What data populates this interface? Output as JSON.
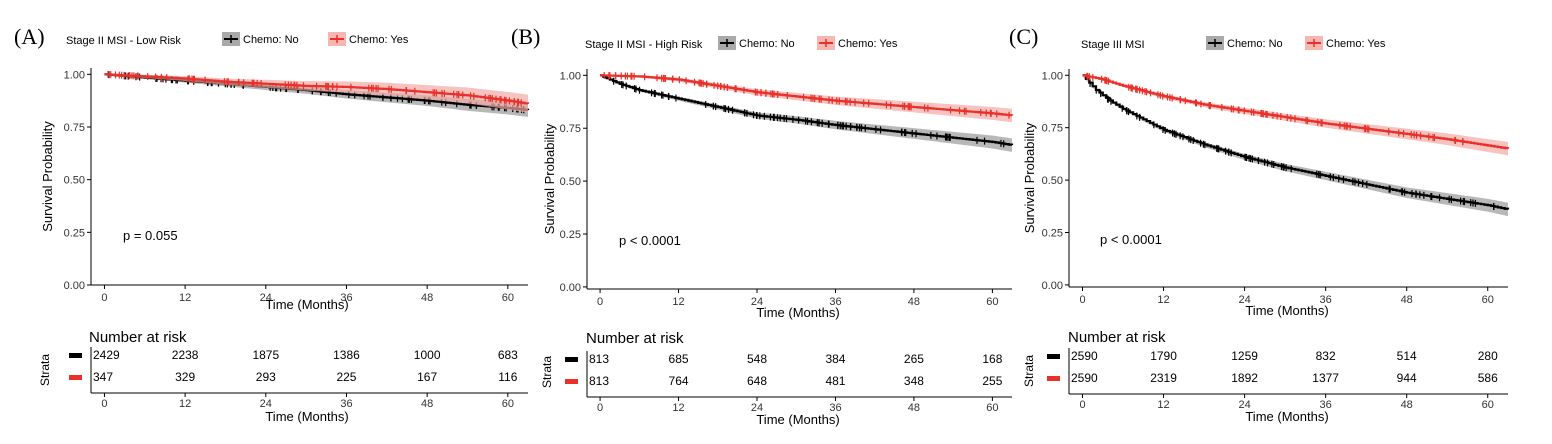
{
  "chart_data": [
    {
      "type": "line",
      "panel_label": "(A)",
      "legend_title": "Stage II MSI - Low Risk",
      "legend_position": "top",
      "xlabel": "Time (Months)",
      "ylabel": "Survival Probability",
      "xlim": [
        -2,
        63
      ],
      "ylim": [
        0,
        1.03
      ],
      "x_ticks": [
        "0",
        "12",
        "24",
        "36",
        "48",
        "60"
      ],
      "y_ticks": [
        "0.00",
        "0.25",
        "0.50",
        "0.75",
        "1.00"
      ],
      "grid": false,
      "pvalue": "p = 0.055",
      "series": [
        {
          "name": "Chemo: No",
          "color": "#000000",
          "band": "#9a9a9a",
          "x": [
            0,
            6,
            12,
            18,
            24,
            30,
            36,
            42,
            48,
            54,
            60,
            63
          ],
          "y": [
            1.0,
            0.985,
            0.97,
            0.955,
            0.94,
            0.925,
            0.905,
            0.89,
            0.875,
            0.855,
            0.84,
            0.83
          ]
        },
        {
          "name": "Chemo: Yes",
          "color": "#e8312a",
          "band": "#f4a9a5",
          "x": [
            0,
            6,
            12,
            18,
            24,
            30,
            36,
            42,
            48,
            54,
            60,
            63
          ],
          "y": [
            1.0,
            0.99,
            0.98,
            0.965,
            0.955,
            0.945,
            0.94,
            0.93,
            0.915,
            0.9,
            0.875,
            0.86
          ]
        }
      ],
      "risk_table": {
        "title": "Number at risk",
        "strata_label": "Strata",
        "times": [
          "0",
          "12",
          "24",
          "36",
          "48",
          "60"
        ],
        "xlabel": "Time (Months)",
        "rows": [
          {
            "color": "#000000",
            "values": [
              "2429",
              "2238",
              "1875",
              "1386",
              "1000",
              "683"
            ]
          },
          {
            "color": "#e8312a",
            "values": [
              "347",
              "329",
              "293",
              "225",
              "167",
              "116"
            ]
          }
        ]
      }
    },
    {
      "type": "line",
      "panel_label": "(B)",
      "legend_title": "Stage II MSI - High Risk",
      "legend_position": "top",
      "xlabel": "Time (Months)",
      "ylabel": "Survival Probability",
      "xlim": [
        -2,
        63
      ],
      "ylim": [
        -0.01,
        1.03
      ],
      "x_ticks": [
        "0",
        "12",
        "24",
        "36",
        "48",
        "60"
      ],
      "y_ticks": [
        "0.00",
        "0.25",
        "0.50",
        "0.75",
        "1.00"
      ],
      "grid": false,
      "pvalue": "p < 0.0001",
      "series": [
        {
          "name": "Chemo: No",
          "color": "#000000",
          "band": "#9a9a9a",
          "x": [
            0,
            3,
            6,
            12,
            18,
            24,
            30,
            36,
            42,
            48,
            54,
            60,
            63
          ],
          "y": [
            1.0,
            0.96,
            0.93,
            0.89,
            0.85,
            0.81,
            0.79,
            0.765,
            0.745,
            0.725,
            0.705,
            0.685,
            0.67
          ]
        },
        {
          "name": "Chemo: Yes",
          "color": "#e8312a",
          "band": "#f4a9a5",
          "x": [
            0,
            6,
            12,
            18,
            24,
            30,
            36,
            42,
            48,
            54,
            60,
            63
          ],
          "y": [
            1.0,
            0.995,
            0.98,
            0.95,
            0.92,
            0.9,
            0.88,
            0.865,
            0.85,
            0.835,
            0.82,
            0.81
          ]
        }
      ],
      "risk_table": {
        "title": "Number at risk",
        "strata_label": "Strata",
        "times": [
          "0",
          "12",
          "24",
          "36",
          "48",
          "60"
        ],
        "xlabel": "Time (Months)",
        "rows": [
          {
            "color": "#000000",
            "values": [
              "813",
              "685",
              "548",
              "384",
              "265",
              "168"
            ]
          },
          {
            "color": "#e8312a",
            "values": [
              "813",
              "764",
              "648",
              "481",
              "348",
              "255"
            ]
          }
        ]
      }
    },
    {
      "type": "line",
      "panel_label": "(C)",
      "legend_title": "Stage III MSI",
      "legend_position": "top",
      "xlabel": "Time (Months)",
      "ylabel": "Survival Probability",
      "xlim": [
        -2,
        63
      ],
      "ylim": [
        -0.01,
        1.03
      ],
      "x_ticks": [
        "0",
        "12",
        "24",
        "36",
        "48",
        "60"
      ],
      "y_ticks": [
        "0.00",
        "0.25",
        "0.50",
        "0.75",
        "1.00"
      ],
      "grid": false,
      "pvalue": "p < 0.0001",
      "series": [
        {
          "name": "Chemo: No",
          "color": "#000000",
          "band": "#9a9a9a",
          "x": [
            0,
            2,
            4,
            6,
            9,
            12,
            18,
            24,
            30,
            36,
            42,
            48,
            54,
            60,
            63
          ],
          "y": [
            1.0,
            0.93,
            0.88,
            0.84,
            0.79,
            0.74,
            0.67,
            0.61,
            0.56,
            0.52,
            0.48,
            0.44,
            0.41,
            0.38,
            0.36
          ]
        },
        {
          "name": "Chemo: Yes",
          "color": "#e8312a",
          "band": "#f4a9a5",
          "x": [
            0,
            3,
            6,
            12,
            18,
            24,
            30,
            36,
            42,
            48,
            54,
            60,
            63
          ],
          "y": [
            1.0,
            0.98,
            0.95,
            0.9,
            0.86,
            0.83,
            0.8,
            0.77,
            0.745,
            0.72,
            0.695,
            0.665,
            0.65
          ]
        }
      ],
      "risk_table": {
        "title": "Number at risk",
        "strata_label": "Strata",
        "times": [
          "0",
          "12",
          "24",
          "36",
          "48",
          "60"
        ],
        "xlabel": "Time (Months)",
        "rows": [
          {
            "color": "#000000",
            "values": [
              "2590",
              "1790",
              "1259",
              "832",
              "514",
              "280"
            ]
          },
          {
            "color": "#e8312a",
            "values": [
              "2590",
              "2319",
              "1892",
              "1377",
              "944",
              "586"
            ]
          }
        ]
      }
    }
  ]
}
